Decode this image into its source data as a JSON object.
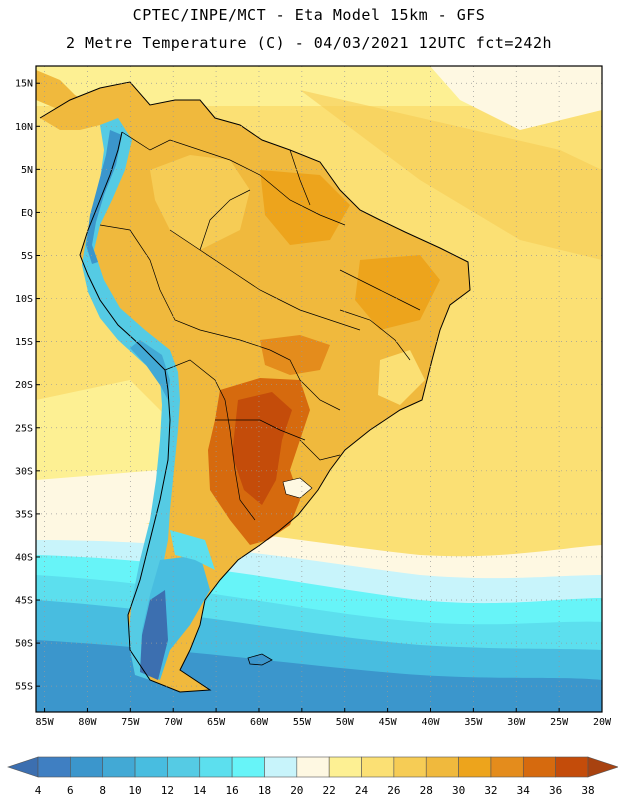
{
  "header": {
    "line1": "CPTEC/INPE/MCT -  Eta Model 15km - GFS",
    "line2": "2 Metre Temperature (C) - 04/03/2021 12UTC fct=242h"
  },
  "map": {
    "lat_labels": [
      "15N",
      "10N",
      "5N",
      "EQ",
      "5S",
      "10S",
      "15S",
      "20S",
      "25S",
      "30S",
      "35S",
      "40S",
      "45S",
      "50S",
      "55S"
    ],
    "lat_values": [
      15,
      10,
      5,
      0,
      -5,
      -10,
      -15,
      -20,
      -25,
      -30,
      -35,
      -40,
      -45,
      -50,
      -55
    ],
    "lon_labels": [
      "85W",
      "80W",
      "75W",
      "70W",
      "65W",
      "60W",
      "55W",
      "50W",
      "45W",
      "40W",
      "35W",
      "30W",
      "25W",
      "20W"
    ],
    "lon_values": [
      -85,
      -80,
      -75,
      -70,
      -65,
      -60,
      -55,
      -50,
      -45,
      -40,
      -35,
      -30,
      -25,
      -20
    ],
    "lat_range": [
      -58,
      17
    ],
    "lon_range": [
      -86,
      -20
    ]
  },
  "colorbar": {
    "labels": [
      "4",
      "6",
      "8",
      "10",
      "12",
      "14",
      "16",
      "18",
      "20",
      "22",
      "24",
      "26",
      "28",
      "30",
      "32",
      "34",
      "36",
      "38"
    ],
    "colors": [
      "#3c6fb0",
      "#3f7fc2",
      "#3b96cc",
      "#42a9d5",
      "#48bde0",
      "#55cbe4",
      "#5cdfee",
      "#67f4f8",
      "#c8f4fb",
      "#fef8e2",
      "#fdf093",
      "#fbe074",
      "#f6cc55",
      "#f0b93d",
      "#eda41c",
      "#e48c1c",
      "#d66a0e",
      "#c44c0a",
      "#a84210"
    ]
  }
}
